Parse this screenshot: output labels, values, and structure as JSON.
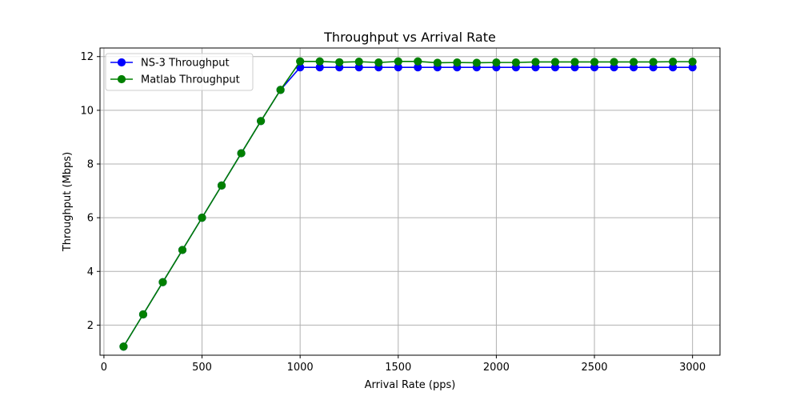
{
  "chart_data": {
    "type": "line",
    "title": "Throughput vs Arrival Rate",
    "xlabel": "Arrival Rate (pps)",
    "ylabel": "Throughput (Mbps)",
    "xlim": [
      -20,
      3140
    ],
    "ylim": [
      0.88,
      12.32
    ],
    "xticks": [
      0,
      500,
      1000,
      1500,
      2000,
      2500,
      3000
    ],
    "yticks": [
      2,
      4,
      6,
      8,
      10,
      12
    ],
    "grid": true,
    "legend_position": "top-left",
    "x": [
      100,
      200,
      300,
      400,
      500,
      600,
      700,
      800,
      900,
      1000,
      1100,
      1200,
      1300,
      1400,
      1500,
      1600,
      1700,
      1800,
      1900,
      2000,
      2100,
      2200,
      2300,
      2400,
      2500,
      2600,
      2700,
      2800,
      2900,
      3000
    ],
    "series": [
      {
        "name": "NS-3 Throughput",
        "color": "#0000ff",
        "values": [
          1.2,
          2.4,
          3.6,
          4.8,
          6.0,
          7.2,
          8.4,
          9.6,
          10.76,
          11.6,
          11.6,
          11.6,
          11.6,
          11.6,
          11.6,
          11.6,
          11.6,
          11.6,
          11.6,
          11.6,
          11.6,
          11.6,
          11.6,
          11.6,
          11.6,
          11.6,
          11.6,
          11.6,
          11.6,
          11.6
        ]
      },
      {
        "name": "Matlab Throughput",
        "color": "#008000",
        "values": [
          1.2,
          2.4,
          3.6,
          4.8,
          6.0,
          7.2,
          8.4,
          9.6,
          10.76,
          11.82,
          11.82,
          11.79,
          11.81,
          11.78,
          11.82,
          11.82,
          11.77,
          11.78,
          11.77,
          11.78,
          11.78,
          11.8,
          11.8,
          11.8,
          11.8,
          11.8,
          11.8,
          11.8,
          11.81,
          11.81
        ]
      }
    ]
  }
}
